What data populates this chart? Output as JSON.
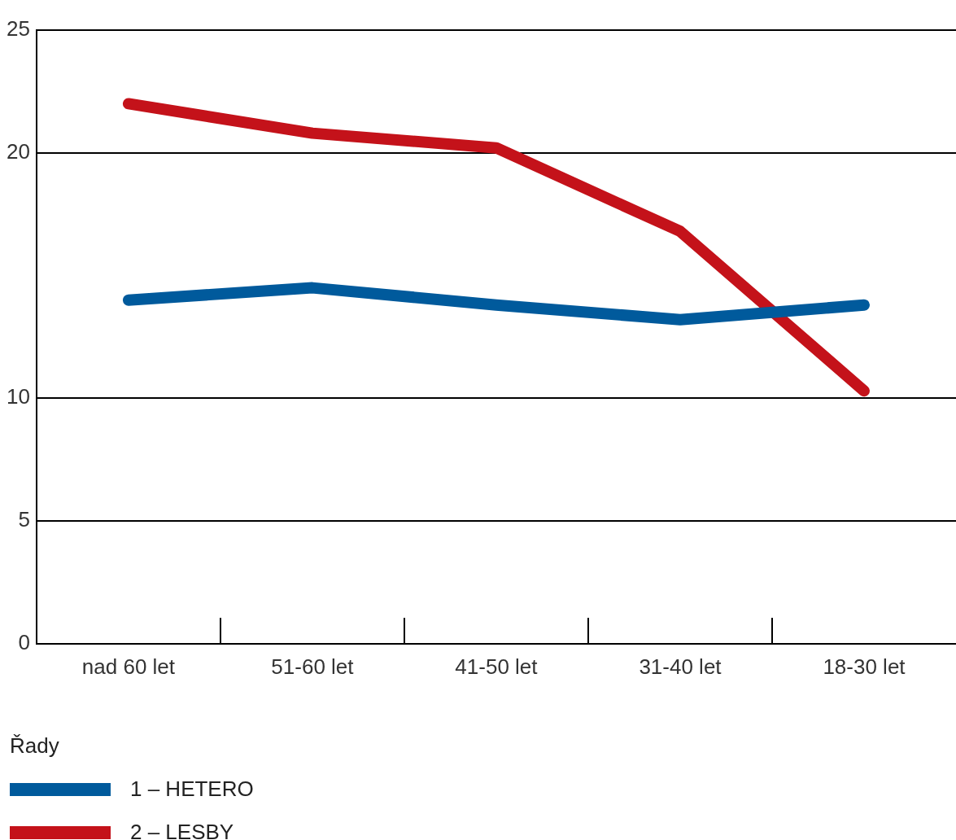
{
  "chart_data": {
    "type": "line",
    "categories": [
      "nad 60 let",
      "51-60 let",
      "41-50 let",
      "31-40 let",
      "18-30 let"
    ],
    "series": [
      {
        "name": "1 – HETERO",
        "color": "#005a9c",
        "values": [
          14.0,
          14.5,
          13.8,
          13.2,
          13.8
        ]
      },
      {
        "name": "2 – LESBY",
        "color": "#c4121a",
        "values": [
          22.0,
          20.8,
          20.2,
          16.8,
          10.3
        ]
      }
    ],
    "ylim": [
      0,
      25
    ],
    "yticks": [
      0,
      5,
      10,
      20,
      25
    ],
    "grid": "y",
    "legend": "bottom",
    "legend_title": "Řady",
    "marker": "none",
    "line_style": "solid"
  }
}
